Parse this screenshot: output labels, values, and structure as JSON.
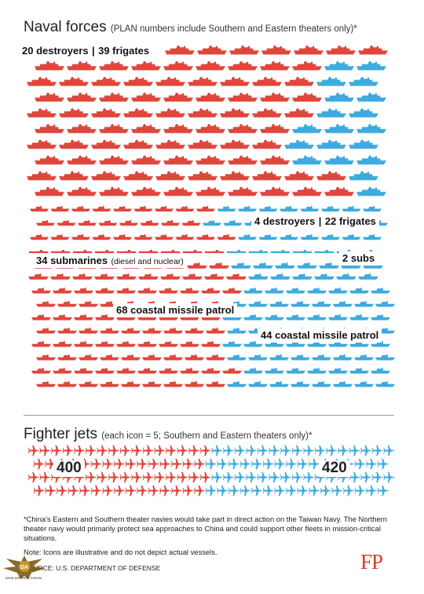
{
  "naval": {
    "title": "Naval forces",
    "subtitle": "(PLAN numbers include Southern and Eastern theaters only)*",
    "china": {
      "destroyers": "20 destroyers",
      "frigates": "39 frigates",
      "submarines": "34 submarines",
      "submarines_note": "(diesel and nuclear)",
      "missile_patrol": "68 coastal missile patrol"
    },
    "taiwan": {
      "destroyers": "4 destroyers",
      "frigates": "22 frigates",
      "subs": "2 subs",
      "missile_patrol": "44 coastal missile patrol"
    }
  },
  "jets": {
    "title": "Fighter jets",
    "subtitle": "(each icon = 5; Southern and Eastern theaters only)*",
    "china_count": "400",
    "taiwan_count": "420"
  },
  "notes": {
    "footnote": "*China's Eastern and Southern theater navies would take part in direct action on the Taiwan Navy. The Northern theater navy would primarily protect sea approaches to China and could support other fleets in mission-critical situations.",
    "note": "Note: Icons are illustrative and do not depict actual vessels.",
    "source_prefix": "SO",
    "source": "URCE: U.S. DEPARTMENT OF DEFENSE"
  },
  "logo": "FP",
  "watermark": {
    "initials": "DA",
    "text": "ARAB DEFENSE FORUM"
  },
  "colors": {
    "china": "#e0463c",
    "taiwan": "#3eaadf",
    "text": "#222222",
    "logo": "#d93a2f"
  },
  "icons": {
    "ship": "warship-icon",
    "submarine": "submarine-icon",
    "patrol": "patrol-boat-icon",
    "jet": "fighter-jet-icon"
  }
}
